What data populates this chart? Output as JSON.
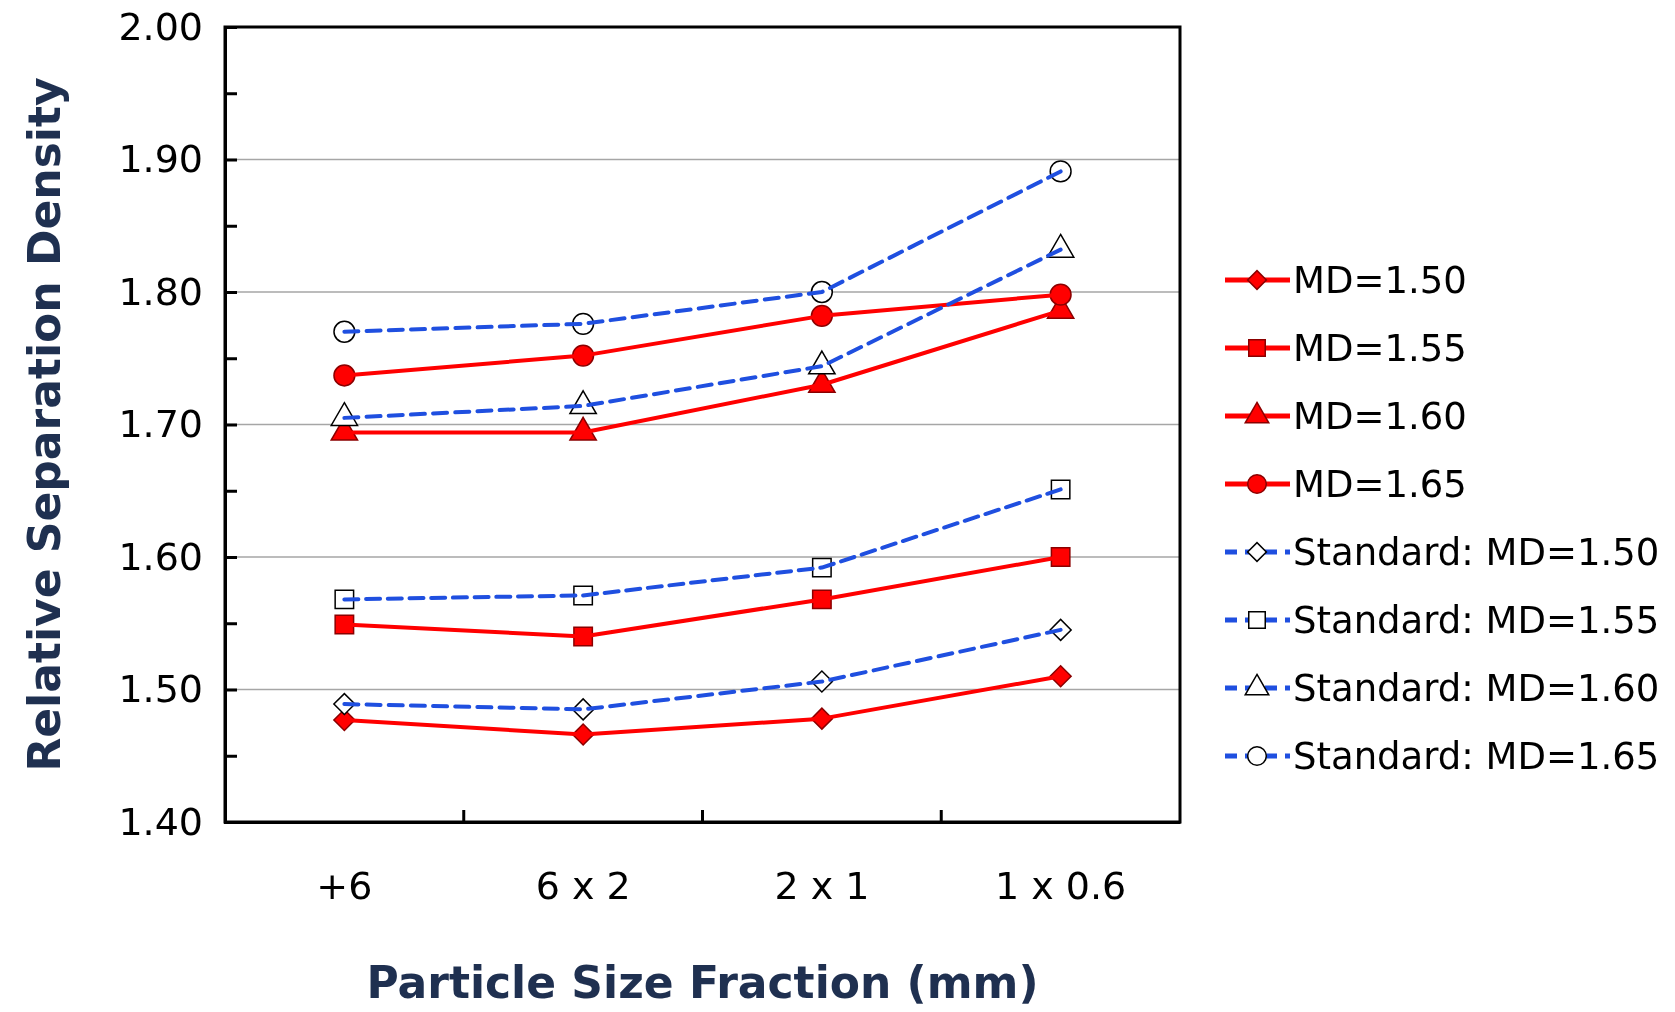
{
  "chart_data": {
    "type": "line",
    "xlabel": "Particle Size Fraction (mm)",
    "ylabel": "Relative Separation Density",
    "categories": [
      "+6",
      "6 x 2",
      "2 x 1",
      "1 x 0.6"
    ],
    "ylim": [
      1.4,
      2.0
    ],
    "yticks": [
      {
        "value": 1.4,
        "label": "1.40"
      },
      {
        "value": 1.45,
        "label": null
      },
      {
        "value": 1.5,
        "label": "1.50"
      },
      {
        "value": 1.55,
        "label": null
      },
      {
        "value": 1.6,
        "label": "1.60"
      },
      {
        "value": 1.65,
        "label": null
      },
      {
        "value": 1.7,
        "label": "1.70"
      },
      {
        "value": 1.75,
        "label": null
      },
      {
        "value": 1.8,
        "label": "1.80"
      },
      {
        "value": 1.85,
        "label": null
      },
      {
        "value": 1.9,
        "label": "1.90"
      },
      {
        "value": 1.95,
        "label": null
      },
      {
        "value": 2.0,
        "label": "2.00"
      }
    ],
    "grid": "y",
    "legend": "right",
    "series": [
      {
        "name": "MD=1.50",
        "color": "#ff0000",
        "marker": "diamond",
        "line_style": "solid",
        "values": [
          1.477,
          1.466,
          1.478,
          1.51
        ]
      },
      {
        "name": "MD=1.55",
        "color": "#ff0000",
        "marker": "square",
        "line_style": "solid",
        "values": [
          1.549,
          1.54,
          1.568,
          1.6
        ]
      },
      {
        "name": "MD=1.60",
        "color": "#ff0000",
        "marker": "triangle",
        "line_style": "solid",
        "values": [
          1.694,
          1.694,
          1.73,
          1.786
        ]
      },
      {
        "name": "MD=1.65",
        "color": "#ff0000",
        "marker": "circle",
        "line_style": "solid",
        "values": [
          1.737,
          1.752,
          1.782,
          1.798
        ]
      },
      {
        "name": "Standard: MD=1.50",
        "color": "#1f4fe0",
        "marker": "diamond",
        "line_style": "dashed",
        "values": [
          1.489,
          1.485,
          1.506,
          1.545
        ]
      },
      {
        "name": "Standard: MD=1.55",
        "color": "#1f4fe0",
        "marker": "square",
        "line_style": "dashed",
        "values": [
          1.568,
          1.571,
          1.592,
          1.651
        ]
      },
      {
        "name": "Standard: MD=1.60",
        "color": "#1f4fe0",
        "marker": "triangle",
        "line_style": "dashed",
        "values": [
          1.705,
          1.714,
          1.744,
          1.832
        ]
      },
      {
        "name": "Standard: MD=1.65",
        "color": "#1f4fe0",
        "marker": "circle",
        "line_style": "dashed",
        "values": [
          1.77,
          1.776,
          1.8,
          1.891
        ]
      }
    ]
  }
}
